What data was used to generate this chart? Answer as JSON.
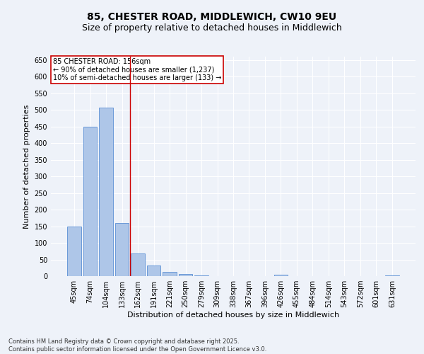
{
  "title_line1": "85, CHESTER ROAD, MIDDLEWICH, CW10 9EU",
  "title_line2": "Size of property relative to detached houses in Middlewich",
  "xlabel": "Distribution of detached houses by size in Middlewich",
  "ylabel": "Number of detached properties",
  "categories": [
    "45sqm",
    "74sqm",
    "104sqm",
    "133sqm",
    "162sqm",
    "191sqm",
    "221sqm",
    "250sqm",
    "279sqm",
    "309sqm",
    "338sqm",
    "367sqm",
    "396sqm",
    "426sqm",
    "455sqm",
    "484sqm",
    "514sqm",
    "543sqm",
    "572sqm",
    "601sqm",
    "631sqm"
  ],
  "values": [
    150,
    450,
    507,
    160,
    68,
    32,
    12,
    7,
    3,
    0,
    0,
    0,
    0,
    5,
    0,
    0,
    0,
    0,
    0,
    0,
    3
  ],
  "bar_color": "#aec6e8",
  "bar_edge_color": "#5b8fd4",
  "ylim": [
    0,
    660
  ],
  "yticks": [
    0,
    50,
    100,
    150,
    200,
    250,
    300,
    350,
    400,
    450,
    500,
    550,
    600,
    650
  ],
  "vline_color": "#cc0000",
  "vline_x_idx": 3.5,
  "annotation_text": "85 CHESTER ROAD: 156sqm\n← 90% of detached houses are smaller (1,237)\n10% of semi-detached houses are larger (133) →",
  "annotation_box_color": "#ffffff",
  "annotation_box_edge": "#cc0000",
  "footer_line1": "Contains HM Land Registry data © Crown copyright and database right 2025.",
  "footer_line2": "Contains public sector information licensed under the Open Government Licence v3.0.",
  "bg_color": "#eef2f9",
  "grid_color": "#ffffff",
  "title_fontsize": 10,
  "subtitle_fontsize": 9,
  "tick_fontsize": 7,
  "label_fontsize": 8,
  "annotation_fontsize": 7,
  "footer_fontsize": 6
}
